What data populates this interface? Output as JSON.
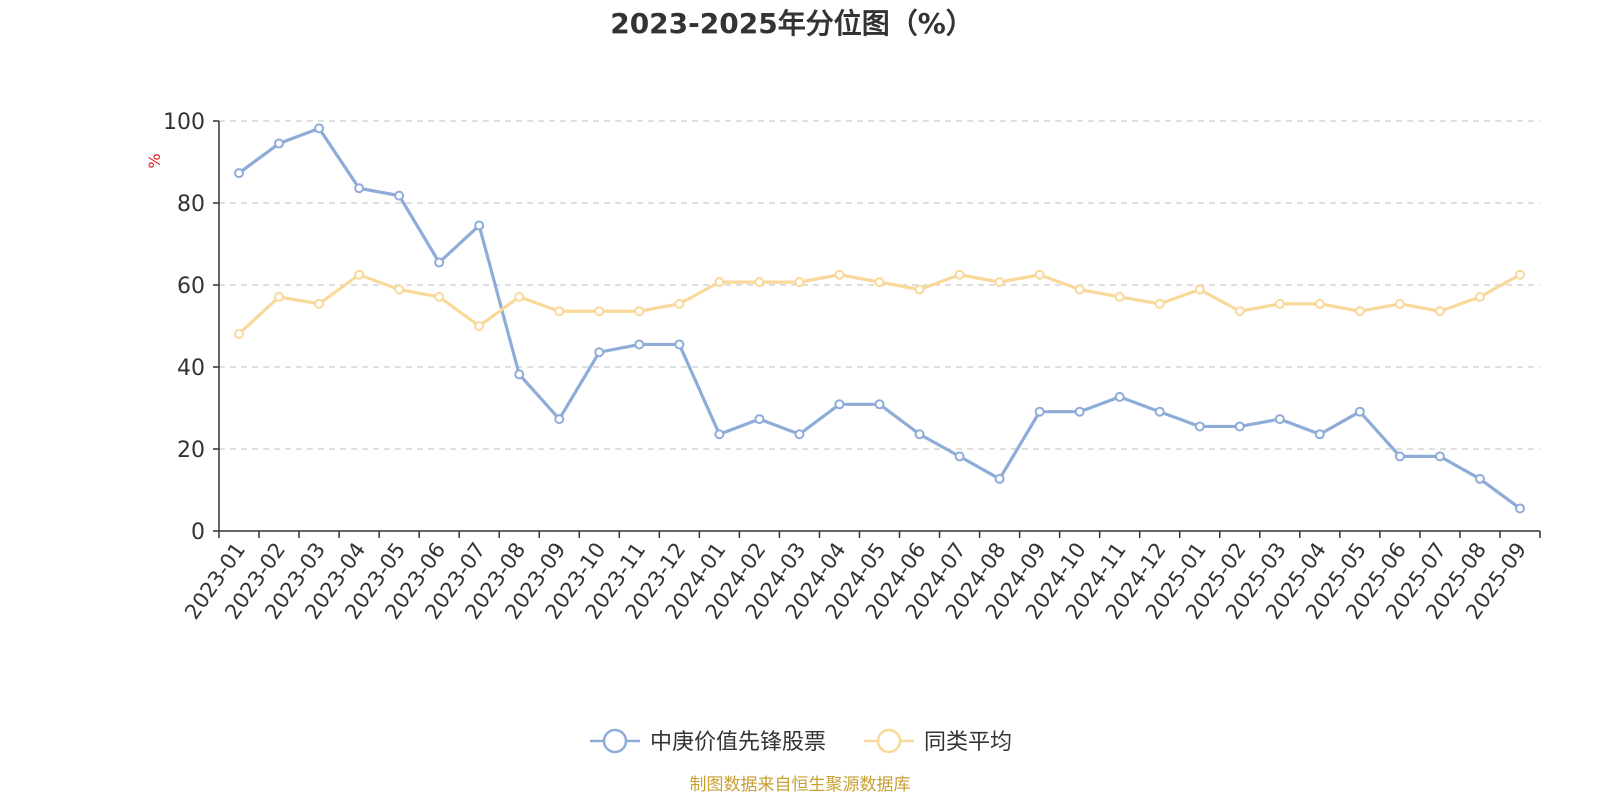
{
  "chart_data": {
    "type": "line",
    "title": "2023-2025年分位图（%）",
    "ylabel": "%",
    "ylim": [
      0,
      100
    ],
    "yticks": [
      "0",
      "20",
      "40",
      "60",
      "80",
      "100"
    ],
    "grid": true,
    "legend_position": "bottom-center",
    "categories": [
      "2023-01",
      "2023-02",
      "2023-03",
      "2023-04",
      "2023-05",
      "2023-06",
      "2023-07",
      "2023-08",
      "2023-09",
      "2023-10",
      "2023-11",
      "2023-12",
      "2024-01",
      "2024-02",
      "2024-03",
      "2024-04",
      "2024-05",
      "2024-06",
      "2024-07",
      "2024-08",
      "2024-09",
      "2024-10",
      "2024-11",
      "2024-12",
      "2025-01",
      "2025-02",
      "2025-03",
      "2025-04",
      "2025-05",
      "2025-06",
      "2025-07",
      "2025-08",
      "2025-09"
    ],
    "series": [
      {
        "name": "中庚价值先锋股票",
        "color": "#8eacd8",
        "values": [
          87.3,
          94.5,
          98.2,
          83.6,
          81.8,
          65.5,
          74.5,
          38.2,
          27.3,
          43.6,
          45.5,
          45.5,
          23.6,
          27.3,
          23.6,
          30.9,
          30.9,
          23.6,
          18.2,
          12.7,
          29.1,
          29.1,
          32.7,
          29.1,
          25.5,
          25.5,
          27.3,
          23.6,
          29.1,
          18.2,
          18.2,
          12.7,
          5.5
        ]
      },
      {
        "name": "同类平均",
        "color": "#f9d99a",
        "values": [
          48.1,
          57.1,
          55.4,
          62.5,
          58.9,
          57.1,
          50.0,
          57.1,
          53.6,
          53.6,
          53.6,
          55.4,
          60.7,
          60.7,
          60.7,
          62.5,
          60.7,
          58.9,
          62.5,
          60.7,
          62.5,
          58.9,
          57.1,
          55.4,
          58.9,
          53.6,
          55.4,
          55.4,
          53.6,
          55.4,
          53.6,
          57.1,
          62.5
        ]
      }
    ]
  },
  "source_note": "制图数据来自恒生聚源数据库",
  "colors": {
    "axis": "#333333",
    "grid": "#cccccc",
    "unit_label": "#e02020",
    "source_text": "#c8a032"
  }
}
